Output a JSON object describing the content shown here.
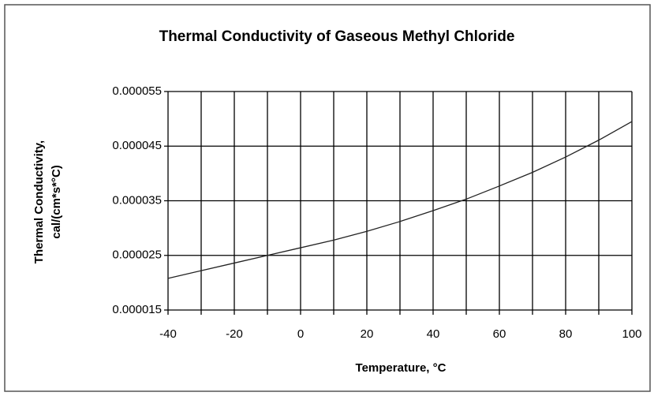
{
  "chart_data": {
    "type": "line",
    "title": "Thermal Conductivity of Gaseous Methyl Chloride",
    "y_label": [
      "Thermal Conductivity,",
      "cal/(cm*s*°C)"
    ],
    "x_label": "Temperature, °C",
    "x": [
      -40,
      -30,
      -20,
      -10,
      0,
      10,
      20,
      30,
      40,
      50,
      60,
      70,
      80,
      90,
      100
    ],
    "series": [
      {
        "color": "#222222",
        "values": [
          2.08e-05,
          2.22e-05,
          2.36e-05,
          2.5e-05,
          2.64e-05,
          2.78e-05,
          2.94e-05,
          3.12e-05,
          3.32e-05,
          3.53e-05,
          3.77e-05,
          4.02e-05,
          4.3e-05,
          4.61e-05,
          4.95e-05
        ]
      }
    ],
    "xlim": [
      -40,
      100
    ],
    "xticks": [
      -40,
      -20,
      0,
      20,
      40,
      60,
      80,
      100
    ],
    "xminorticks": [
      -30,
      -10,
      10,
      30,
      50,
      70,
      90
    ],
    "ylim": [
      1.5e-05,
      5.5e-05
    ],
    "yticks": [
      1.5e-05,
      2.5e-05,
      3.5e-05,
      4.5e-05,
      5.5e-05
    ],
    "grid": true
  }
}
